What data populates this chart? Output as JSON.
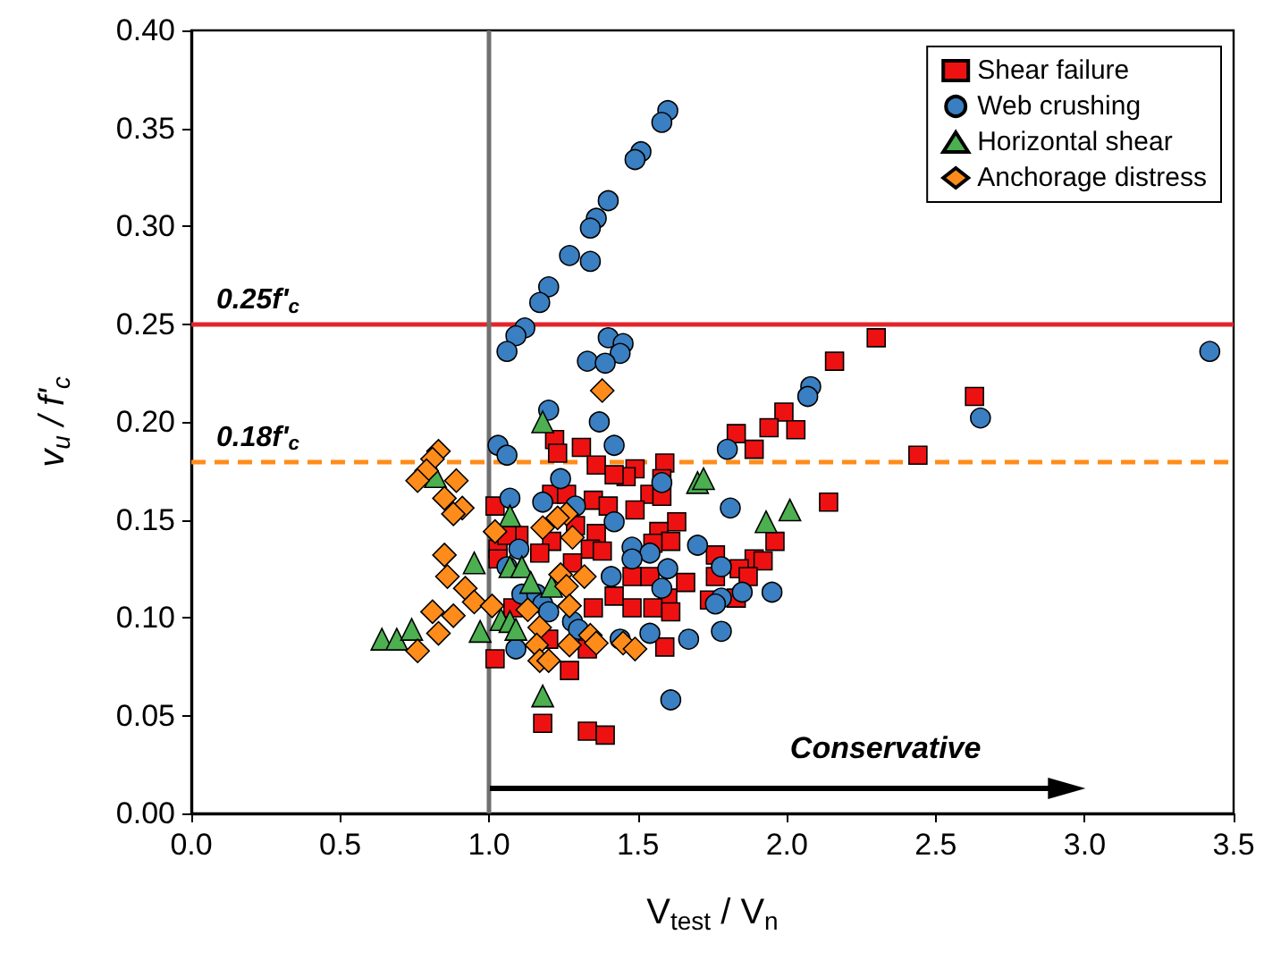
{
  "chart_data": {
    "type": "scatter",
    "xlabel": "V$_{test}$ / V$_{n}$",
    "ylabel": "v$_{u}$ / f'$_{c}$",
    "xlim": [
      0,
      3.5
    ],
    "xticks": [
      {
        "value": 0,
        "label": "0.0"
      },
      {
        "value": 0.5,
        "label": "0.5"
      },
      {
        "value": 1,
        "label": "1.0"
      },
      {
        "value": 1.5,
        "label": "1.5"
      },
      {
        "value": 2,
        "label": "2.0"
      },
      {
        "value": 2.5,
        "label": "2.5"
      },
      {
        "value": 3,
        "label": "3.0"
      },
      {
        "value": 3.5,
        "label": "3.5"
      }
    ],
    "ylim": [
      0,
      0.4
    ],
    "yticks": [
      {
        "value": 0,
        "label": "0.00"
      },
      {
        "value": 0.05,
        "label": "0.05"
      },
      {
        "value": 0.1,
        "label": "0.10"
      },
      {
        "value": 0.15,
        "label": "0.15"
      },
      {
        "value": 0.2,
        "label": "0.20"
      },
      {
        "value": 0.25,
        "label": "0.25"
      },
      {
        "value": 0.3,
        "label": "0.30"
      },
      {
        "value": 0.35,
        "label": "0.35"
      },
      {
        "value": 0.4,
        "label": "0.40"
      }
    ],
    "grid": false,
    "legend": "top right",
    "ref_lines": [
      {
        "axis": "y",
        "value": 0.25,
        "label": "0.25f'$_{c}$",
        "color": "#e3242b",
        "line_style": "solid"
      },
      {
        "axis": "y",
        "value": 0.18,
        "label": "0.18f'$_{c}$",
        "color": "#ff8c1a",
        "line_style": "dashed"
      },
      {
        "axis": "x",
        "value": 1.0,
        "label": null,
        "color": "#707070",
        "line_style": "solid"
      }
    ],
    "annotations": [
      "Conservative"
    ],
    "series": [
      {
        "name": "Shear failure",
        "color": "#ee1111",
        "marker": "square",
        "x": [
          2.3,
          2.16,
          1.99,
          1.94,
          2.03,
          1.83,
          1.89,
          2.44,
          2.63,
          1.59,
          1.49,
          1.46,
          1.58,
          1.54,
          1.58,
          1.49,
          2.14,
          1.63,
          1.57,
          1.96,
          1.61,
          1.55,
          1.76,
          1.22,
          1.31,
          1.23,
          1.36,
          1.42,
          1.21,
          1.26,
          1.35,
          1.4,
          1.02,
          1.1,
          1.21,
          1.36,
          1.34,
          1.03,
          1.89,
          1.92,
          1.84,
          1.48,
          1.54,
          1.66,
          1.76,
          1.87,
          1.6,
          1.74,
          1.83,
          1.48,
          1.55,
          1.61,
          1.59,
          1.06,
          1.29,
          1.03,
          1.17,
          1.28,
          1.38,
          1.42,
          1.35,
          1.08,
          1.2,
          1.33,
          1.02,
          1.27,
          1.18,
          1.33,
          1.39
        ],
        "values": [
          0.243,
          0.231,
          0.205,
          0.197,
          0.196,
          0.194,
          0.186,
          0.183,
          0.213,
          0.179,
          0.176,
          0.172,
          0.171,
          0.163,
          0.162,
          0.155,
          0.159,
          0.149,
          0.144,
          0.139,
          0.139,
          0.138,
          0.132,
          0.191,
          0.187,
          0.184,
          0.178,
          0.173,
          0.163,
          0.163,
          0.16,
          0.157,
          0.157,
          0.142,
          0.139,
          0.143,
          0.135,
          0.135,
          0.13,
          0.129,
          0.125,
          0.121,
          0.121,
          0.118,
          0.121,
          0.121,
          0.11,
          0.109,
          0.11,
          0.105,
          0.105,
          0.103,
          0.085,
          0.142,
          0.147,
          0.13,
          0.133,
          0.128,
          0.134,
          0.111,
          0.105,
          0.105,
          0.089,
          0.084,
          0.079,
          0.073,
          0.046,
          0.042,
          0.04
        ]
      },
      {
        "name": "Web crushing",
        "color": "#3a7fc1",
        "marker": "circle",
        "x": [
          1.6,
          1.58,
          1.51,
          1.49,
          1.4,
          1.36,
          1.34,
          1.27,
          1.34,
          1.2,
          1.17,
          1.12,
          1.09,
          1.06,
          1.4,
          1.45,
          1.44,
          1.33,
          1.39,
          1.2,
          1.37,
          1.42,
          1.03,
          1.06,
          1.24,
          1.07,
          1.18,
          1.29,
          1.42,
          1.1,
          2.08,
          2.07,
          1.8,
          1.58,
          1.81,
          1.7,
          1.48,
          1.54,
          1.6,
          1.78,
          1.58,
          1.85,
          1.95,
          1.78,
          1.76,
          1.54,
          1.67,
          1.78,
          1.61,
          1.06,
          1.11,
          1.16,
          1.18,
          1.2,
          1.41,
          1.48,
          1.44,
          1.09,
          1.28,
          1.3,
          3.42,
          2.65
        ],
        "values": [
          0.359,
          0.353,
          0.338,
          0.334,
          0.313,
          0.304,
          0.299,
          0.285,
          0.282,
          0.269,
          0.261,
          0.248,
          0.244,
          0.236,
          0.243,
          0.24,
          0.235,
          0.231,
          0.23,
          0.206,
          0.2,
          0.188,
          0.188,
          0.183,
          0.171,
          0.161,
          0.159,
          0.157,
          0.149,
          0.135,
          0.218,
          0.213,
          0.186,
          0.169,
          0.156,
          0.137,
          0.136,
          0.133,
          0.125,
          0.126,
          0.115,
          0.113,
          0.113,
          0.11,
          0.107,
          0.092,
          0.089,
          0.093,
          0.058,
          0.126,
          0.112,
          0.112,
          0.107,
          0.103,
          0.121,
          0.13,
          0.089,
          0.084,
          0.098,
          0.094,
          0.236,
          0.202
        ]
      },
      {
        "name": "Horizontal shear",
        "color": "#4caf50",
        "marker": "triangle",
        "x": [
          1.18,
          0.82,
          1.07,
          0.95,
          1.07,
          1.11,
          1.14,
          1.21,
          0.64,
          0.69,
          0.74,
          0.97,
          1.04,
          1.07,
          1.09,
          1.18,
          1.7,
          1.72,
          1.93,
          2.01
        ],
        "values": [
          0.2,
          0.172,
          0.152,
          0.128,
          0.126,
          0.126,
          0.118,
          0.116,
          0.089,
          0.089,
          0.094,
          0.093,
          0.099,
          0.098,
          0.094,
          0.06,
          0.169,
          0.171,
          0.149,
          0.155
        ]
      },
      {
        "name": "Anchorage distress",
        "color": "#ff8c1a",
        "marker": "diamond",
        "x": [
          1.38,
          0.83,
          0.81,
          0.79,
          0.76,
          0.89,
          0.85,
          0.91,
          0.88,
          1.02,
          1.18,
          1.26,
          1.23,
          1.28,
          0.85,
          0.86,
          0.92,
          0.95,
          1.01,
          0.81,
          0.88,
          0.83,
          0.76,
          1.13,
          1.24,
          1.26,
          1.32,
          1.27,
          1.17,
          1.34,
          1.36,
          1.16,
          1.27,
          1.17,
          1.2,
          1.45,
          1.49
        ],
        "values": [
          0.216,
          0.185,
          0.181,
          0.175,
          0.17,
          0.17,
          0.161,
          0.156,
          0.153,
          0.144,
          0.146,
          0.153,
          0.151,
          0.141,
          0.132,
          0.121,
          0.115,
          0.108,
          0.106,
          0.103,
          0.101,
          0.092,
          0.083,
          0.104,
          0.122,
          0.116,
          0.121,
          0.106,
          0.095,
          0.091,
          0.087,
          0.086,
          0.086,
          0.078,
          0.078,
          0.087,
          0.084
        ]
      }
    ]
  }
}
